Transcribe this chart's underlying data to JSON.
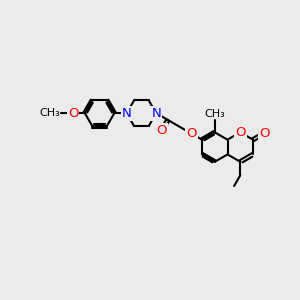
{
  "bg_color": "#ebebeb",
  "bond_color": "#000000",
  "atom_colors": {
    "O": "#ff0000",
    "N": "#0000ff"
  },
  "bond_width": 1.5,
  "font_size": 8.5,
  "fig_size": [
    3.0,
    3.0
  ],
  "dpi": 100
}
